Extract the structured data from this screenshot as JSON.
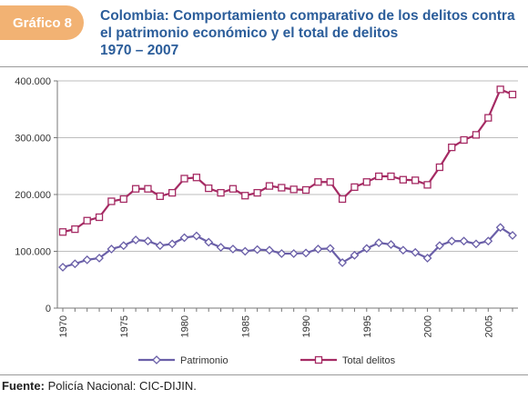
{
  "header": {
    "badge_label": "Gráfico 8",
    "title_line1": "Colombia: Comportamiento comparativo de los delitos contra",
    "title_line2": "el patrimonio económico y el total de delitos",
    "title_line3": "1970 – 2007"
  },
  "footer": {
    "source_label": "Fuente:",
    "source_text": " Policía Nacional: CIC-DIJIN."
  },
  "chart_data": {
    "type": "line",
    "x": [
      1970,
      1971,
      1972,
      1973,
      1974,
      1975,
      1976,
      1977,
      1978,
      1979,
      1980,
      1981,
      1982,
      1983,
      1984,
      1985,
      1986,
      1987,
      1988,
      1989,
      1990,
      1991,
      1992,
      1993,
      1994,
      1995,
      1996,
      1997,
      1998,
      1999,
      2000,
      2001,
      2002,
      2003,
      2004,
      2005,
      2006,
      2007
    ],
    "series": [
      {
        "name": "Patrimonio",
        "color": "#6a5fa8",
        "marker": "diamond",
        "values": [
          72000,
          78000,
          85000,
          88000,
          104000,
          110000,
          120000,
          118000,
          110000,
          113000,
          124000,
          127000,
          116000,
          107000,
          104000,
          100000,
          103000,
          102000,
          96000,
          96000,
          97000,
          104000,
          105000,
          80000,
          93000,
          105000,
          115000,
          112000,
          102000,
          98000,
          88000,
          110000,
          118000,
          118000,
          113000,
          118000,
          142000,
          128000
        ]
      },
      {
        "name": "Total delitos",
        "color": "#a52a63",
        "marker": "square",
        "values": [
          134000,
          139000,
          154000,
          160000,
          188000,
          192000,
          210000,
          210000,
          197000,
          203000,
          228000,
          230000,
          211000,
          203000,
          210000,
          198000,
          203000,
          215000,
          212000,
          209000,
          208000,
          222000,
          222000,
          192000,
          213000,
          222000,
          232000,
          232000,
          226000,
          225000,
          217000,
          248000,
          283000,
          296000,
          305000,
          335000,
          385000,
          376000
        ]
      }
    ],
    "y_ticks": [
      "0",
      "100.000",
      "200.000",
      "300.000",
      "400.000"
    ],
    "x_ticks": [
      "1970",
      "1975",
      "1980",
      "1985",
      "1990",
      "1995",
      "2000",
      "2005"
    ],
    "ylim": [
      0,
      400000
    ],
    "xlim": [
      1970,
      2007
    ],
    "grid": true,
    "legend_position": "bottom"
  }
}
